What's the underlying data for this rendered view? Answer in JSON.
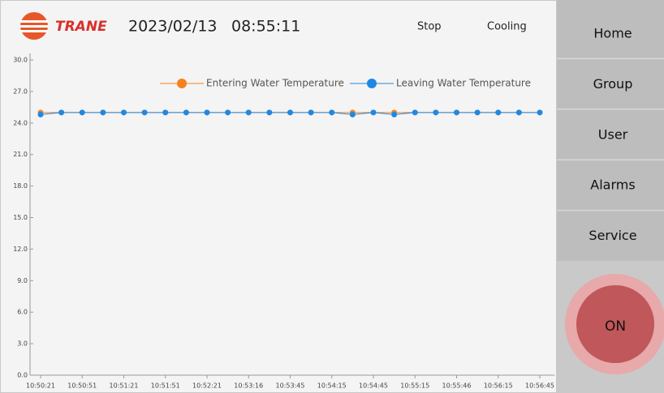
{
  "header": {
    "brand": "TRANE",
    "date": "2023/02/13",
    "time": "08:55:11",
    "status": "Stop",
    "mode": "Cooling"
  },
  "nav": [
    "Home",
    "Group",
    "User",
    "Alarms",
    "Service"
  ],
  "power_button": "ON",
  "chart_data": {
    "type": "line",
    "categories": [
      "10:50:21",
      null,
      "10:50:51",
      null,
      "10:51:21",
      null,
      "10:51:51",
      null,
      "10:52:21",
      null,
      "10:53:16",
      null,
      "10:53:45",
      null,
      "10:54:15",
      null,
      "10:54:45",
      null,
      "10:55:15",
      null,
      "10:55:46",
      null,
      "10:56:15",
      null,
      "10:56:45"
    ],
    "series": [
      {
        "name": "Entering Water Temperature",
        "color": "#f5821f",
        "values": [
          25,
          25,
          25,
          25,
          25,
          25,
          25,
          25,
          25,
          25,
          25,
          25,
          25,
          25,
          25,
          25,
          25,
          25,
          25,
          25,
          25,
          25,
          25,
          25,
          25
        ]
      },
      {
        "name": "Leaving Water Temperature",
        "color": "#1e88e5",
        "values": [
          24.8,
          25,
          25,
          25,
          25,
          25,
          25,
          25,
          25,
          25,
          25,
          25,
          25,
          25,
          25,
          24.8,
          25,
          24.8,
          25,
          25,
          25,
          25,
          25,
          25,
          25
        ]
      }
    ],
    "ylim": [
      0,
      30
    ],
    "yticks": [
      {
        "value": 0,
        "label": "0.0"
      },
      {
        "value": 3,
        "label": "3.0"
      },
      {
        "value": 6,
        "label": "6.0"
      },
      {
        "value": 9,
        "label": "9.0"
      },
      {
        "value": 12,
        "label": "12.0"
      },
      {
        "value": 15,
        "label": "15.0"
      },
      {
        "value": 18,
        "label": "18.0"
      },
      {
        "value": 21,
        "label": "21.0"
      },
      {
        "value": 24,
        "label": "24.0"
      },
      {
        "value": 27,
        "label": "27.0"
      },
      {
        "value": 30,
        "label": "30.0"
      }
    ],
    "legend": "top"
  }
}
